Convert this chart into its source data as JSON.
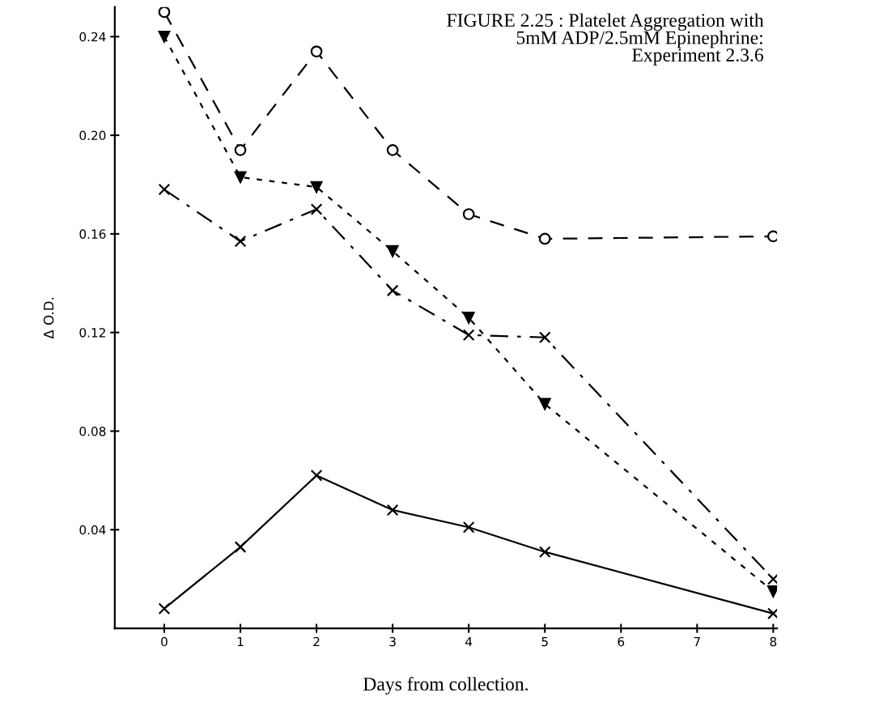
{
  "chart_data": {
    "type": "line",
    "title": "FIGURE 2.25 : Platelet Aggregation with\n5mM ADP/2.5mM Epinephrine:\nExperiment 2.3.6",
    "xlabel": "Days from collection.",
    "ylabel": "Δ O.D.",
    "x": [
      0,
      1,
      2,
      3,
      4,
      5,
      8
    ],
    "series": [
      {
        "color": "#000000",
        "marker": "circle",
        "line_style": "dashed",
        "values": [
          0.25,
          0.194,
          0.234,
          0.194,
          0.168,
          0.158,
          0.159
        ]
      },
      {
        "color": "#000000",
        "marker": "triangle",
        "line_style": "dotted",
        "values": [
          0.24,
          0.183,
          0.179,
          0.153,
          0.126,
          0.091,
          0.015
        ]
      },
      {
        "color": "#000000",
        "marker": "cross",
        "line_style": "dashdot",
        "values": [
          0.178,
          0.157,
          0.17,
          0.137,
          0.119,
          0.118,
          0.02
        ]
      },
      {
        "color": "#000000",
        "marker": "cross",
        "line_style": "solid",
        "values": [
          0.008,
          0.033,
          0.062,
          0.048,
          0.041,
          0.031,
          0.006
        ]
      }
    ],
    "xlim": [
      -0.65,
      8.05
    ],
    "xticks": [
      0,
      1,
      2,
      3,
      4,
      5,
      6,
      7,
      8
    ],
    "ylim": [
      0,
      0.252
    ],
    "yticks": [
      0.04,
      0.08,
      0.12,
      0.16,
      {
        "value": 0.2,
        "label": "0.20"
      },
      0.24
    ],
    "grid": false,
    "legend": false
  }
}
